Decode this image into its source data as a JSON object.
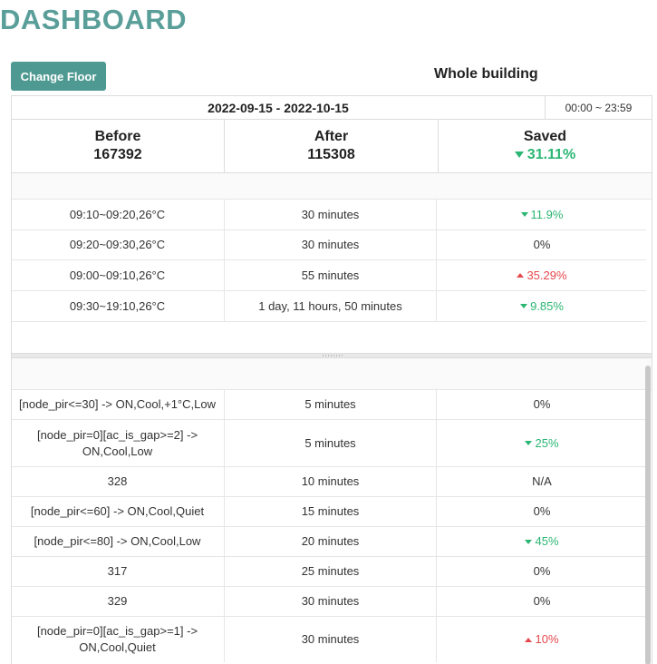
{
  "header": {
    "title": "DASHBOARD"
  },
  "toolbar": {
    "change_floor_label": "Change Floor",
    "scope_label": "Whole building"
  },
  "summary": {
    "date_range": "2022-09-15 - 2022-10-15",
    "time_range": "00:00 ~ 23:59",
    "before_label": "Before",
    "before_value": "167392",
    "after_label": "After",
    "after_value": "115308",
    "saved_label": "Saved",
    "saved_value": "31.11%"
  },
  "schedule_rows": [
    {
      "condition": "09:10~09:20,26°C",
      "duration": "30 minutes",
      "change": "11.9%",
      "trend": "down"
    },
    {
      "condition": "09:20~09:30,26°C",
      "duration": "30 minutes",
      "change": "0%",
      "trend": "none"
    },
    {
      "condition": "09:00~09:10,26°C",
      "duration": "55 minutes",
      "change": "35.29%",
      "trend": "up"
    },
    {
      "condition": "09:30~19:10,26°C",
      "duration": "1 day, 11 hours, 50 minutes",
      "change": "9.85%",
      "trend": "down"
    }
  ],
  "rule_rows": [
    {
      "condition": "[node_pir<=30] -> ON,Cool,+1°C,Low",
      "duration": "5 minutes",
      "change": "0%",
      "trend": "none"
    },
    {
      "condition": "[node_pir=0][ac_is_gap>=2] -> ON,Cool,Low",
      "duration": "5 minutes",
      "change": "25%",
      "trend": "down"
    },
    {
      "condition": "328",
      "duration": "10 minutes",
      "change": "N/A",
      "trend": "none"
    },
    {
      "condition": "[node_pir<=60] -> ON,Cool,Quiet",
      "duration": "15 minutes",
      "change": "0%",
      "trend": "none"
    },
    {
      "condition": "[node_pir<=80] -> ON,Cool,Low",
      "duration": "20 minutes",
      "change": "45%",
      "trend": "down"
    },
    {
      "condition": "317",
      "duration": "25 minutes",
      "change": "0%",
      "trend": "none"
    },
    {
      "condition": "329",
      "duration": "30 minutes",
      "change": "0%",
      "trend": "none"
    },
    {
      "condition": "[node_pir=0][ac_is_gap>=1] -> ON,Cool,Quiet",
      "duration": "30 minutes",
      "change": "10%",
      "trend": "up"
    }
  ],
  "colors": {
    "accent": "#4e9a92",
    "title": "#5a9e99",
    "down": "#2bb673",
    "up": "#e5484d"
  }
}
